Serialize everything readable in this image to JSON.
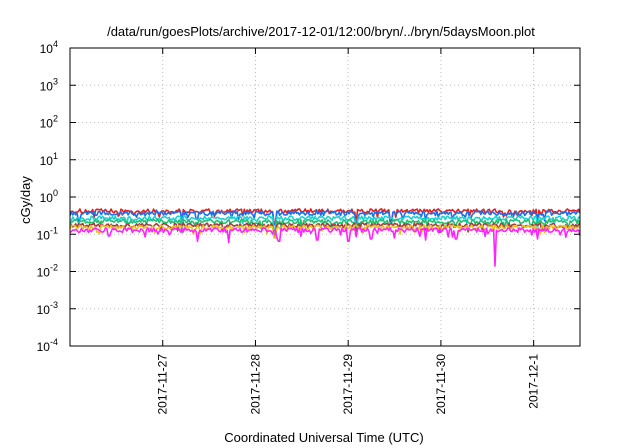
{
  "chart_data": {
    "type": "line",
    "title": "/data/run/goesPlots/archive/2017-12-01/12:00/bryn/../bryn/5daysMoon.plot",
    "xlabel": "Coordinated Universal Time (UTC)",
    "ylabel": "cGy/day",
    "y_scale": "log",
    "ylim": [
      0.0001,
      10000
    ],
    "xlim": [
      "2017-11-26T00:00",
      "2017-12-01T12:00"
    ],
    "grid": true,
    "legend": "none",
    "y_ticks": [
      {
        "base": "10",
        "exp": "-4"
      },
      {
        "base": "10",
        "exp": "-3"
      },
      {
        "base": "10",
        "exp": "-2"
      },
      {
        "base": "10",
        "exp": "-1"
      },
      {
        "base": "10",
        "exp": "0"
      },
      {
        "base": "10",
        "exp": "1"
      },
      {
        "base": "10",
        "exp": "2"
      },
      {
        "base": "10",
        "exp": "3"
      },
      {
        "base": "10",
        "exp": "4"
      }
    ],
    "x_ticks": [
      "2017-11-27",
      "2017-11-28",
      "2017-11-29",
      "2017-11-30",
      "2017-12-1"
    ],
    "series": [
      {
        "color": "#dd2222",
        "level": 0.42,
        "dips": [
          [
            "2017-11-27T05:00",
            0.22
          ],
          [
            "2017-11-28T05:00",
            0.2
          ],
          [
            "2017-11-29T02:00",
            0.2
          ],
          [
            "2017-11-29T11:00",
            0.22
          ],
          [
            "2017-12-01T01:00",
            0.2
          ]
        ]
      },
      {
        "color": "#1e6ef0",
        "level": 0.37,
        "dips": [
          [
            "2017-11-27T05:00",
            0.2
          ],
          [
            "2017-11-28T05:00",
            0.18
          ],
          [
            "2017-11-29T02:00",
            0.18
          ],
          [
            "2017-11-29T11:00",
            0.2
          ],
          [
            "2017-12-01T01:00",
            0.18
          ]
        ]
      },
      {
        "color": "#20d0d0",
        "level": 0.27,
        "dips": [
          [
            "2017-11-27T05:00",
            0.14
          ],
          [
            "2017-11-28T05:00",
            0.13
          ],
          [
            "2017-11-29T02:00",
            0.13
          ],
          [
            "2017-12-01T01:00",
            0.13
          ]
        ]
      },
      {
        "color": "#22c070",
        "level": 0.22,
        "dips": [
          [
            "2017-11-27T05:00",
            0.11
          ],
          [
            "2017-11-28T05:00",
            0.1
          ],
          [
            "2017-11-29T02:00",
            0.11
          ]
        ]
      },
      {
        "color": "#a04040",
        "level": 0.175,
        "dips": [
          [
            "2017-11-28T05:00",
            0.09
          ],
          [
            "2017-11-29T02:00",
            0.09
          ]
        ]
      },
      {
        "color": "#e8c020",
        "level": 0.155,
        "dips": [
          [
            "2017-11-28T05:00",
            0.08
          ]
        ]
      },
      {
        "color": "#ff22ff",
        "level": 0.13,
        "dips": [
          [
            "2017-11-26T10:00",
            0.09
          ],
          [
            "2017-11-27T09:00",
            0.065
          ],
          [
            "2017-11-27T17:00",
            0.06
          ],
          [
            "2017-11-28T06:00",
            0.065
          ],
          [
            "2017-11-28T16:00",
            0.07
          ],
          [
            "2017-11-29T00:00",
            0.065
          ],
          [
            "2017-11-29T06:00",
            0.075
          ],
          [
            "2017-11-29T12:00",
            0.08
          ],
          [
            "2017-11-29T20:00",
            0.07
          ],
          [
            "2017-11-30T04:00",
            0.075
          ],
          [
            "2017-11-30T14:00",
            0.014
          ],
          [
            "2017-12-01T01:00",
            0.075
          ]
        ]
      }
    ]
  }
}
